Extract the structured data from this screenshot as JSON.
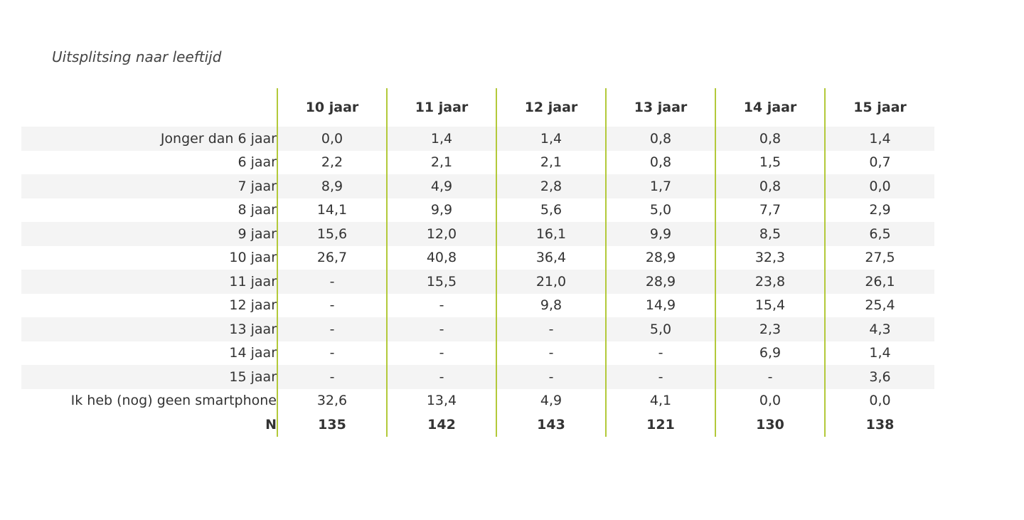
{
  "caption": "Uitsplitsing naar leeftijd",
  "table": {
    "header": [
      "10 jaar",
      "11 jaar",
      "12 jaar",
      "13 jaar",
      "14 jaar",
      "15 jaar"
    ],
    "rows": [
      [
        "Jonger dan 6 jaar",
        "0,0",
        "1,4",
        "1,4",
        "0,8",
        "0,8",
        "1,4"
      ],
      [
        "6 jaar",
        "2,2",
        "2,1",
        "2,1",
        "0,8",
        "1,5",
        "0,7"
      ],
      [
        "7 jaar",
        "8,9",
        "4,9",
        "2,8",
        "1,7",
        "0,8",
        "0,0"
      ],
      [
        "8 jaar",
        "14,1",
        "9,9",
        "5,6",
        "5,0",
        "7,7",
        "2,9"
      ],
      [
        "9 jaar",
        "15,6",
        "12,0",
        "16,1",
        "9,9",
        "8,5",
        "6,5"
      ],
      [
        "10 jaar",
        "26,7",
        "40,8",
        "36,4",
        "28,9",
        "32,3",
        "27,5"
      ],
      [
        "11 jaar",
        "-",
        "15,5",
        "21,0",
        "28,9",
        "23,8",
        "26,1"
      ],
      [
        "12 jaar",
        "-",
        "-",
        "9,8",
        "14,9",
        "15,4",
        "25,4"
      ],
      [
        "13 jaar",
        "-",
        "-",
        "-",
        "5,0",
        "2,3",
        "4,3"
      ],
      [
        "14 jaar",
        "-",
        "-",
        "-",
        "-",
        "6,9",
        "1,4"
      ],
      [
        "15 jaar",
        "-",
        "-",
        "-",
        "-",
        "-",
        "3,6"
      ],
      [
        "Ik heb (nog) geen smartphone",
        "32,6",
        "13,4",
        "4,9",
        "4,1",
        "0,0",
        "0,0"
      ]
    ],
    "total_row": [
      "N",
      "135",
      "142",
      "143",
      "121",
      "130",
      "138"
    ]
  }
}
